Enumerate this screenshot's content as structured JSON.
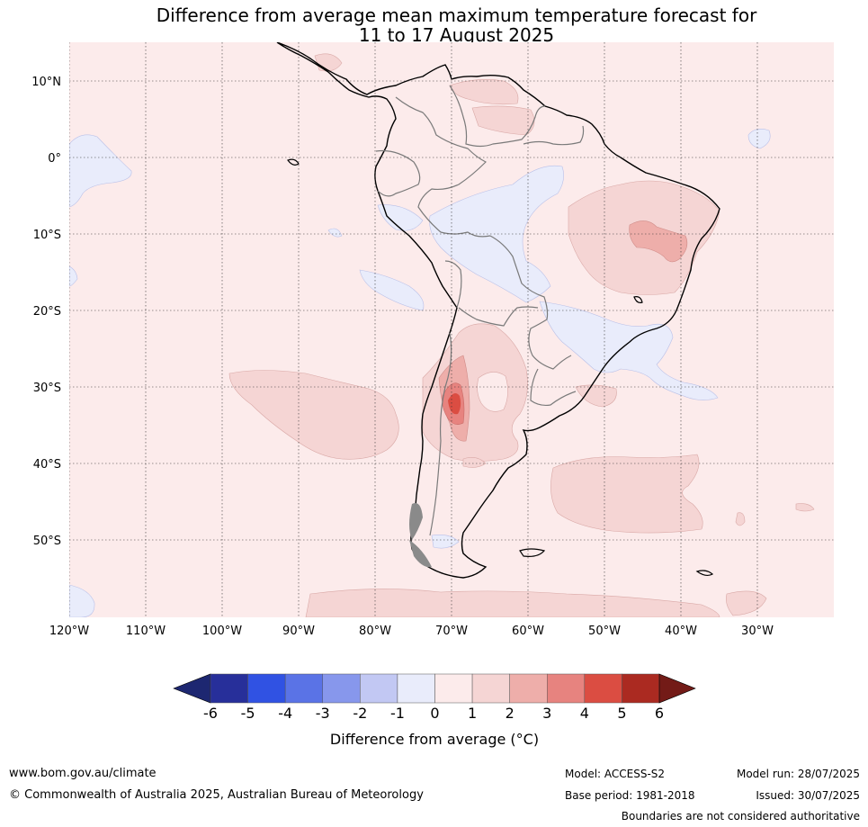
{
  "title": {
    "line1": "Difference from average mean maximum temperature forecast for",
    "line2": "11 to 17 August 2025"
  },
  "map": {
    "lat_labels": [
      "10°N",
      "0°",
      "10°S",
      "20°S",
      "30°S",
      "40°S",
      "50°S"
    ],
    "lon_labels": [
      "120°W",
      "110°W",
      "100°W",
      "90°W",
      "80°W",
      "70°W",
      "60°W",
      "50°W",
      "40°W",
      "30°W"
    ]
  },
  "colorbar": {
    "ticks": [
      "-6",
      "-5",
      "-4",
      "-3",
      "-2",
      "-1",
      "0",
      "1",
      "2",
      "3",
      "4",
      "5",
      "6"
    ],
    "colors": [
      "#272f9a",
      "#3052e3",
      "#5a73e6",
      "#8797ec",
      "#c2c8f3",
      "#e9ecfb",
      "#fcebeb",
      "#f5d5d4",
      "#eeaeaa",
      "#e7837f",
      "#db4d42",
      "#ab2a21"
    ],
    "low_extend_color": "#1d2771",
    "high_extend_color": "#731b17",
    "label": "Difference from average (°C)"
  },
  "footer": {
    "website": "www.bom.gov.au/climate",
    "copyright": "© Commonwealth of Australia 2025, Australian Bureau of Meteorology",
    "model": "Model: ACCESS-S2",
    "base_period": "Base period: 1981-2018",
    "model_run": "Model run: 28/07/2025",
    "issued": "Issued: 30/07/2025",
    "disclaimer": "Boundaries are not considered authoritative"
  }
}
